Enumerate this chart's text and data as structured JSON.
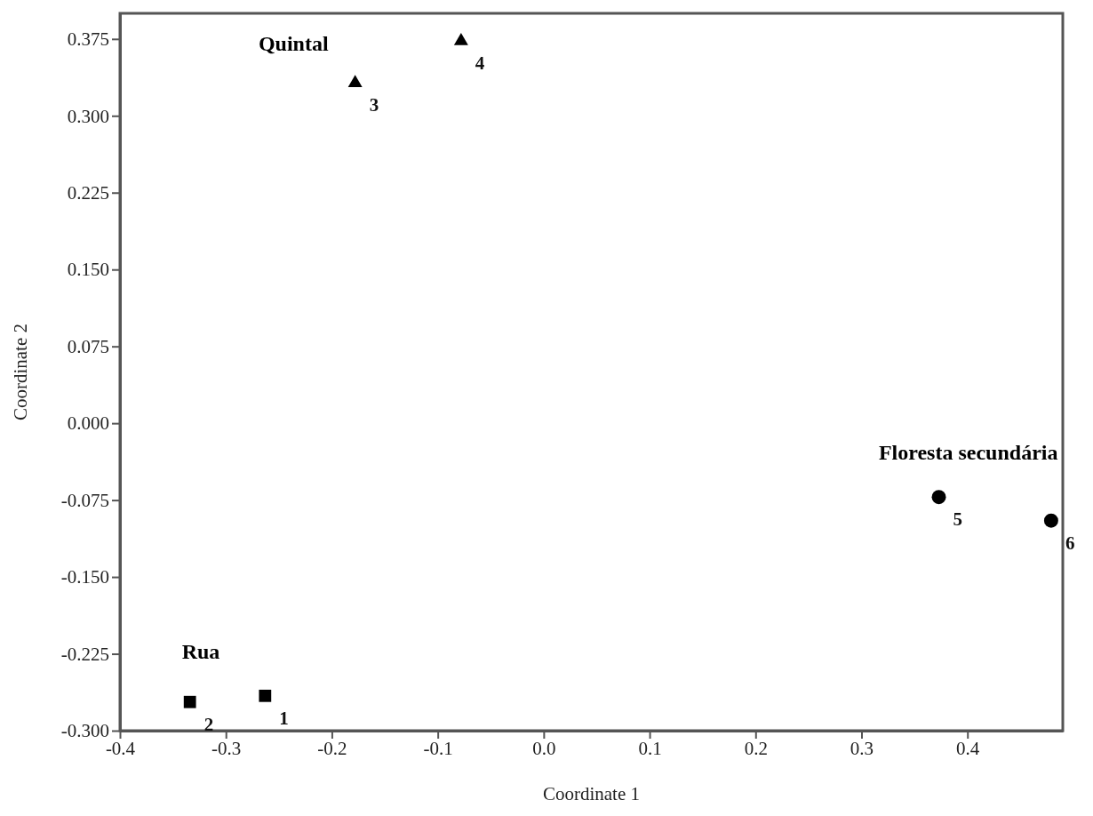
{
  "chart_data": {
    "type": "scatter",
    "xlabel": "Coordinate 1",
    "ylabel": "Coordinate 2",
    "xlim": [
      -0.4,
      0.49
    ],
    "ylim": [
      -0.3,
      0.4
    ],
    "xticks": [
      -0.4,
      -0.3,
      -0.2,
      {
        "value": -0.1,
        "label": "-0.1"
      },
      {
        "value": 0,
        "label": "0.0"
      },
      0.1,
      0.2,
      0.3,
      0.4
    ],
    "yticks": [
      {
        "value": -0.3,
        "label": "-0.300"
      },
      -0.225,
      {
        "value": -0.15,
        "label": "-0.150"
      },
      -0.075,
      {
        "value": 0,
        "label": "0.000"
      },
      0.075,
      {
        "value": 0.15,
        "label": "0.150"
      },
      0.225,
      {
        "value": 0.3,
        "label": "0.300"
      },
      0.375
    ],
    "grid": false,
    "series": [
      {
        "name": "Rua",
        "color": "#000000",
        "marker": "square",
        "x": [
          -0.263,
          -0.334
        ],
        "values": [
          -0.266,
          -0.272
        ]
      },
      {
        "name": "Quintal",
        "color": "#000000",
        "marker": "triangle",
        "x": [
          -0.178,
          -0.078
        ],
        "values": [
          0.332,
          0.373
        ]
      },
      {
        "name": "Floresta secundária",
        "color": "#000000",
        "marker": "circle",
        "x": [
          0.373,
          0.479
        ],
        "values": [
          -0.072,
          -0.095
        ]
      }
    ],
    "annotations": [
      {
        "text": "1",
        "x": -0.263,
        "y": -0.266
      },
      {
        "text": "2",
        "x": -0.334,
        "y": -0.272
      },
      {
        "text": "3",
        "x": -0.178,
        "y": 0.332
      },
      {
        "text": "4",
        "x": -0.078,
        "y": 0.373
      },
      {
        "text": "5",
        "x": 0.373,
        "y": -0.072
      },
      {
        "text": "6",
        "x": 0.479,
        "y": -0.095
      }
    ]
  }
}
